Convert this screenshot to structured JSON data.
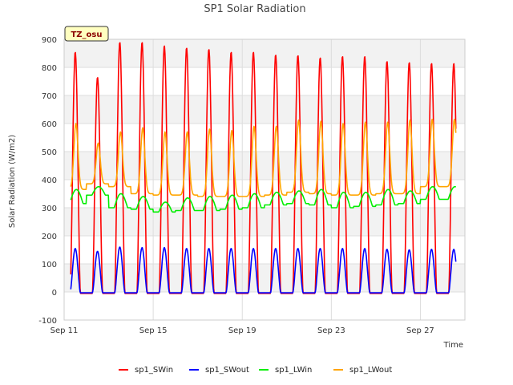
{
  "chart_data": {
    "type": "line",
    "title": "SP1 Solar Radiation",
    "xlabel": "Time",
    "ylabel": "Solar Radiation (W/m2)",
    "station_label": "TZ_osu",
    "x_unit": "date",
    "x_start": "2023-09-11",
    "xlim_days": [
      0,
      18
    ],
    "x_ticks": [
      {
        "day": 0,
        "label": "Sep 11"
      },
      {
        "day": 4,
        "label": "Sep 15"
      },
      {
        "day": 8,
        "label": "Sep 19"
      },
      {
        "day": 12,
        "label": "Sep 23"
      },
      {
        "day": 16,
        "label": "Sep 27"
      }
    ],
    "ylim": [
      -100,
      900
    ],
    "y_ticks": [
      -100,
      0,
      100,
      200,
      300,
      400,
      500,
      600,
      700,
      800,
      900
    ],
    "grid": true,
    "legend_position": "bottom",
    "days": [
      "Sep 11",
      "Sep 12",
      "Sep 13",
      "Sep 14",
      "Sep 15",
      "Sep 16",
      "Sep 17",
      "Sep 18",
      "Sep 19",
      "Sep 20",
      "Sep 21",
      "Sep 22",
      "Sep 23",
      "Sep 24",
      "Sep 25",
      "Sep 26",
      "Sep 27",
      "Sep 28"
    ],
    "series": [
      {
        "name": "sp1_SWin",
        "color": "#ff0000",
        "daily_peak": [
          855,
          765,
          890,
          890,
          878,
          870,
          865,
          855,
          855,
          845,
          843,
          835,
          840,
          840,
          822,
          818,
          815
        ],
        "night_value": -5
      },
      {
        "name": "sp1_SWout",
        "color": "#0000ff",
        "daily_peak": [
          155,
          145,
          160,
          158,
          158,
          155,
          155,
          155,
          155,
          155,
          155,
          155,
          155,
          155,
          152,
          150,
          152
        ],
        "night_value": -3
      },
      {
        "name": "sp1_LWin",
        "color": "#00ee00",
        "daily_peak": [
          365,
          375,
          350,
          340,
          320,
          335,
          340,
          345,
          350,
          355,
          360,
          365,
          355,
          355,
          365,
          360,
          375
        ],
        "night_value": [
          315,
          345,
          300,
          295,
          285,
          290,
          290,
          295,
          300,
          310,
          315,
          310,
          300,
          305,
          310,
          315,
          330
        ]
      },
      {
        "name": "sp1_LWout",
        "color": "#ffa500",
        "daily_peak": [
          600,
          530,
          570,
          585,
          570,
          570,
          580,
          575,
          590,
          590,
          612,
          608,
          600,
          605,
          605,
          612,
          615
        ],
        "night_value": [
          365,
          385,
          375,
          350,
          345,
          345,
          340,
          340,
          340,
          345,
          355,
          350,
          345,
          345,
          350,
          350,
          375
        ]
      }
    ]
  }
}
